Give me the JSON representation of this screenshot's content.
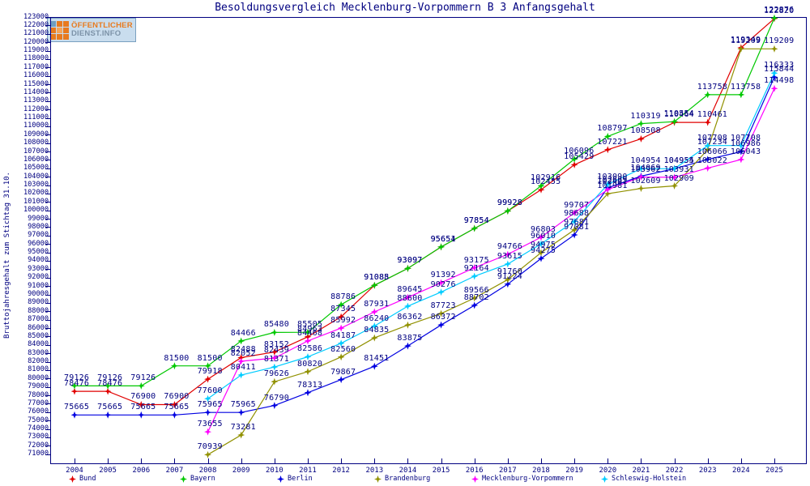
{
  "title": "Besoldungsvergleich Mecklenburg-Vorpommern B 3 Anfangsgehalt",
  "y_axis_title": "Bruttojahresgehalt zum Stichtag 31.10.",
  "logo": {
    "line1": "ÖFFENTLICHER",
    "line2": "DIENST.INFO"
  },
  "colors": {
    "axis": "#000080",
    "label_text": "#000080"
  },
  "chart_data": {
    "type": "line",
    "title": "Besoldungsvergleich Mecklenburg-Vorpommern B 3 Anfangsgehalt",
    "xlabel": "",
    "ylabel": "Bruttojahresgehalt zum Stichtag 31.10.",
    "x": [
      2004,
      2005,
      2006,
      2007,
      2008,
      2009,
      2010,
      2011,
      2012,
      2013,
      2014,
      2015,
      2016,
      2017,
      2018,
      2019,
      2020,
      2021,
      2022,
      2023,
      2024,
      2025
    ],
    "ylim": [
      71000,
      123000
    ],
    "ytick_step": 1000,
    "grid": false,
    "legend_position": "bottom",
    "point_labels": true,
    "series": [
      {
        "name": "Bund",
        "color": "#e10000",
        "values": [
          78476,
          78476,
          76900,
          76900,
          79918,
          82488,
          83152,
          84963,
          87345,
          91088,
          93097,
          95651,
          97854,
          99928,
          102455,
          105429,
          107221,
          108508,
          110464,
          110461,
          119349,
          122820
        ]
      },
      {
        "name": "Bayern",
        "color": "#00c800",
        "values": [
          79126,
          79126,
          79126,
          81500,
          81500,
          84466,
          85480,
          85505,
          88786,
          91085,
          93097,
          95654,
          97854,
          99928,
          102916,
          106096,
          108797,
          110319,
          110554,
          113758,
          113758,
          122876
        ]
      },
      {
        "name": "Berlin",
        "color": "#0000e1",
        "values": [
          75665,
          75665,
          75665,
          75665,
          75965,
          75965,
          76790,
          78313,
          79867,
          81451,
          83875,
          86372,
          88702,
          91224,
          94275,
          97081,
          102689,
          104069,
          104954,
          106066,
          106986,
          115844
        ]
      },
      {
        "name": "Brandenburg",
        "color": "#919100",
        "values": [
          null,
          null,
          null,
          null,
          70939,
          73281,
          79626,
          80820,
          82560,
          84835,
          86362,
          87723,
          89566,
          91760,
          94975,
          97681,
          101981,
          102609,
          102909,
          107234,
          119209,
          119209
        ]
      },
      {
        "name": "Mecklenburg-Vorpommern",
        "color": "#ff00ff",
        "values": [
          null,
          null,
          null,
          null,
          73655,
          82052,
          82439,
          84468,
          85992,
          87931,
          89645,
          91392,
          93175,
          94766,
          96803,
          99707,
          102481,
          103962,
          103931,
          105022,
          106043,
          114498
        ]
      },
      {
        "name": "Schleswig-Holstein",
        "color": "#00ccff",
        "values": [
          null,
          null,
          null,
          null,
          77600,
          80411,
          81371,
          82586,
          84187,
          86240,
          88600,
          90276,
          92164,
          93615,
          96010,
          98688,
          103090,
          104954,
          104955,
          107708,
          107708,
          116333
        ]
      }
    ]
  }
}
